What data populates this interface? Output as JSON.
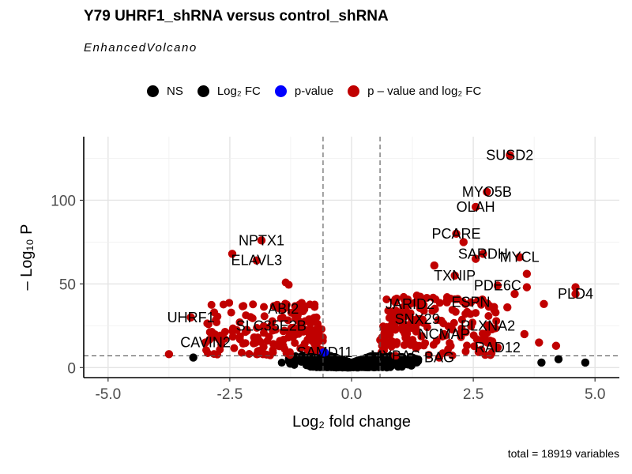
{
  "title": "Y79 UHRF1_shRNA versus control_shRNA",
  "subtitle": "EnhancedVolcano",
  "caption": "total = 18919 variables",
  "legend": [
    {
      "label": "NS",
      "color": "#000000"
    },
    {
      "label": "Log₂ FC",
      "color": "#000000"
    },
    {
      "label": "p-value",
      "color": "#0000ff"
    },
    {
      "label": "p – value and log₂ FC",
      "color": "#c00000"
    }
  ],
  "chart_data": {
    "type": "scatter",
    "title": "Y79 UHRF1_shRNA versus control_shRNA",
    "subtitle": "EnhancedVolcano",
    "xlabel": "Log₂ fold change",
    "ylabel": "– Log₁₀ P",
    "xlim": [
      -5.5,
      5.5
    ],
    "ylim": [
      -6,
      138
    ],
    "x_ticks": [
      "-5.0",
      "-2.5",
      "0.0",
      "2.5",
      "5.0"
    ],
    "x_tick_values": [
      -5,
      -2.5,
      0,
      2.5,
      5
    ],
    "y_ticks": [
      "0",
      "50",
      "100"
    ],
    "y_tick_values": [
      0,
      50,
      100
    ],
    "fc_cutoff": 0.585,
    "p_cutoff_line": 7,
    "grid": true,
    "legend_position": "top",
    "colors": {
      "NS": "#000000",
      "FC": "#000000",
      "P": "#0000ff",
      "FC_P": "#c00000"
    },
    "labeled_points": [
      {
        "gene": "SUSD2",
        "x": 3.25,
        "y": 127
      },
      {
        "gene": "MYO5B",
        "x": 2.78,
        "y": 105
      },
      {
        "gene": "OLAH",
        "x": 2.55,
        "y": 96
      },
      {
        "gene": "PCARE",
        "x": 2.15,
        "y": 80
      },
      {
        "gene": "SARDH",
        "x": 2.7,
        "y": 68
      },
      {
        "gene": "MYCL",
        "x": 3.45,
        "y": 66
      },
      {
        "gene": "TXNIP",
        "x": 2.12,
        "y": 55
      },
      {
        "gene": "PDE6C",
        "x": 3.0,
        "y": 49
      },
      {
        "gene": "PLD4",
        "x": 4.6,
        "y": 44
      },
      {
        "gene": "ESPN",
        "x": 2.45,
        "y": 39
      },
      {
        "gene": "JARID2",
        "x": 1.2,
        "y": 38
      },
      {
        "gene": "SNX29",
        "x": 1.35,
        "y": 29
      },
      {
        "gene": "PLXNA2",
        "x": 2.8,
        "y": 25
      },
      {
        "gene": "NCMAP",
        "x": 1.9,
        "y": 20
      },
      {
        "gene": "RAD12",
        "x": 3.0,
        "y": 12
      },
      {
        "gene": "MYBAS",
        "x": 0.9,
        "y": 7
      },
      {
        "gene": "BAG",
        "x": 1.8,
        "y": 6
      },
      {
        "gene": "NPTX1",
        "x": -1.85,
        "y": 76
      },
      {
        "gene": "ELAVL3",
        "x": -1.95,
        "y": 64
      },
      {
        "gene": "ABI2",
        "x": -1.4,
        "y": 35
      },
      {
        "gene": "UHRF1",
        "x": -3.3,
        "y": 30
      },
      {
        "gene": "SLC35E2B",
        "x": -1.65,
        "y": 25
      },
      {
        "gene": "CAVIN2",
        "x": -3.0,
        "y": 15
      },
      {
        "gene": "SAMD11",
        "x": -0.55,
        "y": 9
      }
    ],
    "extra_points": [
      {
        "x": -2.45,
        "y": 68,
        "sig": "FC_P"
      },
      {
        "x": -3.75,
        "y": 8,
        "sig": "FC_P"
      },
      {
        "x": -3.25,
        "y": 6,
        "sig": "FC"
      },
      {
        "x": -2.15,
        "y": 22,
        "sig": "FC_P"
      },
      {
        "x": -2.0,
        "y": 18,
        "sig": "FC_P"
      },
      {
        "x": 4.6,
        "y": 48,
        "sig": "FC_P"
      },
      {
        "x": 3.95,
        "y": 38,
        "sig": "FC_P"
      },
      {
        "x": 3.6,
        "y": 48,
        "sig": "FC_P"
      },
      {
        "x": 3.35,
        "y": 44,
        "sig": "FC_P"
      },
      {
        "x": 3.2,
        "y": 36,
        "sig": "FC_P"
      },
      {
        "x": 3.55,
        "y": 20,
        "sig": "FC_P"
      },
      {
        "x": 3.85,
        "y": 15,
        "sig": "FC_P"
      },
      {
        "x": 4.2,
        "y": 13,
        "sig": "FC_P"
      },
      {
        "x": 1.7,
        "y": 61,
        "sig": "FC_P"
      },
      {
        "x": 2.3,
        "y": 75,
        "sig": "FC_P"
      },
      {
        "x": 2.55,
        "y": 65,
        "sig": "FC_P"
      },
      {
        "x": 3.6,
        "y": 56,
        "sig": "FC_P"
      },
      {
        "x": 4.8,
        "y": 3,
        "sig": "FC"
      },
      {
        "x": 4.25,
        "y": 5,
        "sig": "FC"
      },
      {
        "x": 3.9,
        "y": 3,
        "sig": "FC"
      },
      {
        "x": -0.58,
        "y": 9,
        "sig": "P"
      }
    ]
  }
}
